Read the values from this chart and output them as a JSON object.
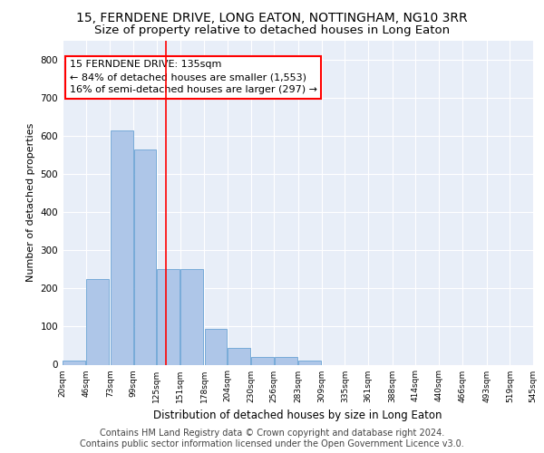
{
  "title": "15, FERNDENE DRIVE, LONG EATON, NOTTINGHAM, NG10 3RR",
  "subtitle": "Size of property relative to detached houses in Long Eaton",
  "xlabel": "Distribution of detached houses by size in Long Eaton",
  "ylabel": "Number of detached properties",
  "bar_color": "#aec6e8",
  "bar_edge_color": "#6aa3d4",
  "background_color": "#e8eef8",
  "grid_color": "#ffffff",
  "red_line_x": 135,
  "annotation_text": "15 FERNDENE DRIVE: 135sqm\n← 84% of detached houses are smaller (1,553)\n16% of semi-detached houses are larger (297) →",
  "bins": [
    20,
    46,
    73,
    99,
    125,
    151,
    178,
    204,
    230,
    256,
    283,
    309,
    335,
    361,
    388,
    414,
    440,
    466,
    493,
    519,
    545
  ],
  "bar_heights": [
    10,
    225,
    615,
    565,
    250,
    250,
    95,
    43,
    20,
    20,
    10,
    0,
    0,
    0,
    0,
    0,
    0,
    0,
    0,
    0
  ],
  "ylim": [
    0,
    850
  ],
  "yticks": [
    0,
    100,
    200,
    300,
    400,
    500,
    600,
    700,
    800
  ],
  "footer_text": "Contains HM Land Registry data © Crown copyright and database right 2024.\nContains public sector information licensed under the Open Government Licence v3.0.",
  "title_fontsize": 10,
  "subtitle_fontsize": 9.5,
  "xlabel_fontsize": 8.5,
  "ylabel_fontsize": 8,
  "footer_fontsize": 7,
  "annot_fontsize": 8
}
